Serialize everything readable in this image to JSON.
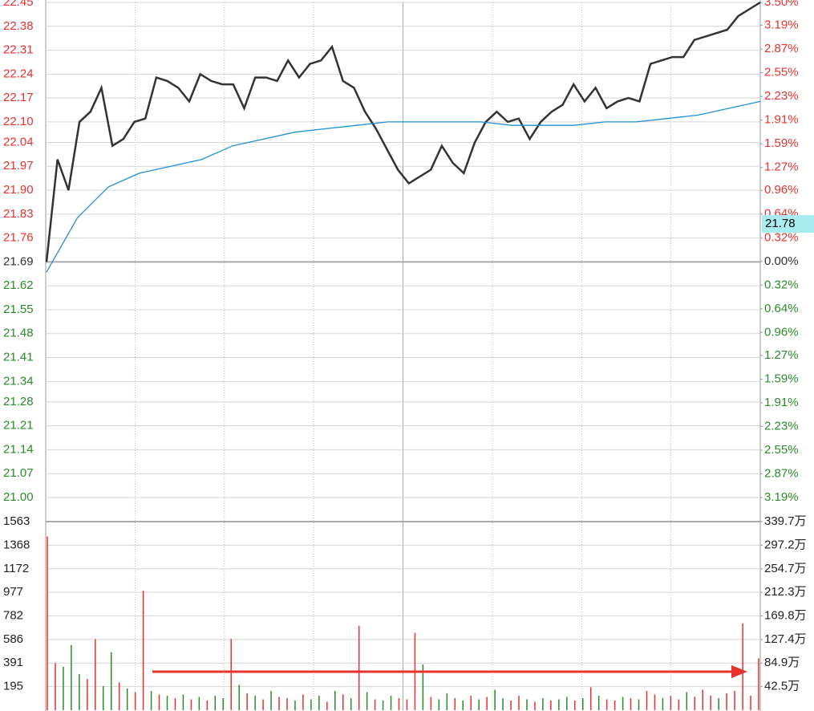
{
  "chart_data": [
    {
      "type": "line",
      "ylim": [
        21.0,
        22.45
      ],
      "yticks": [
        {
          "value": 22.45,
          "label": "22.45"
        },
        22.38,
        22.31,
        22.24,
        22.17,
        {
          "value": 22.1,
          "label": "22.10"
        },
        22.04,
        21.97,
        {
          "value": 21.9,
          "label": "21.90"
        },
        21.83,
        21.76,
        21.69,
        21.62,
        21.55,
        21.48,
        21.41,
        21.34,
        21.28,
        21.21,
        21.14,
        21.07,
        {
          "value": 21.0,
          "label": "21.00"
        }
      ],
      "y2lim": [
        -3.19,
        3.5
      ],
      "y2ticks": [
        {
          "value": 3.5,
          "label": "3.50%"
        },
        {
          "value": 3.19,
          "label": "3.19%"
        },
        {
          "value": 2.87,
          "label": "2.87%"
        },
        {
          "value": 2.55,
          "label": "2.55%"
        },
        {
          "value": 2.23,
          "label": "2.23%"
        },
        {
          "value": 1.91,
          "label": "1.91%"
        },
        {
          "value": 1.59,
          "label": "1.59%"
        },
        {
          "value": 1.27,
          "label": "1.27%"
        },
        {
          "value": 0.96,
          "label": "0.96%"
        },
        {
          "value": 0.64,
          "label": "0.64%"
        },
        {
          "value": 0.32,
          "label": "0.32%"
        },
        {
          "value": 0.0,
          "label": "0.00%"
        },
        {
          "value": -0.32,
          "label": "0.32%"
        },
        {
          "value": -0.64,
          "label": "0.64%"
        },
        {
          "value": -0.96,
          "label": "0.96%"
        },
        {
          "value": -1.27,
          "label": "1.27%"
        },
        {
          "value": -1.59,
          "label": "1.59%"
        },
        {
          "value": -1.91,
          "label": "1.91%"
        },
        {
          "value": -2.23,
          "label": "2.23%"
        },
        {
          "value": -2.55,
          "label": "2.55%"
        },
        {
          "value": -2.87,
          "label": "2.87%"
        },
        {
          "value": -3.19,
          "label": "3.19%"
        }
      ],
      "up_color": "#e8322d",
      "down_color": "#2b8a2b",
      "flat_color": "#333333",
      "series": [
        {
          "color": "#333333",
          "values": [
            21.69,
            21.99,
            21.9,
            22.1,
            22.13,
            22.2,
            22.03,
            22.05,
            22.1,
            22.11,
            22.23,
            22.22,
            22.2,
            22.16,
            22.24,
            22.22,
            22.21,
            22.21,
            22.14,
            22.23,
            22.23,
            22.22,
            22.28,
            22.23,
            22.27,
            22.28,
            22.32,
            22.22,
            22.2,
            22.13,
            22.08,
            22.02,
            21.96,
            21.92,
            21.94,
            21.96,
            22.03,
            21.98,
            21.95,
            22.04,
            22.1,
            22.13,
            22.1,
            22.11,
            22.05,
            22.1,
            22.13,
            22.15,
            22.21,
            22.16,
            22.2,
            22.14,
            22.16,
            22.17,
            22.16,
            22.27,
            22.28,
            22.29,
            22.29,
            22.34,
            22.35,
            22.36,
            22.37,
            22.41,
            22.43,
            22.45
          ]
        },
        {
          "color": "#1e8fd6",
          "values": [
            21.66,
            21.82,
            21.91,
            21.95,
            21.97,
            21.99,
            22.03,
            22.05,
            22.07,
            22.08,
            22.09,
            22.1,
            22.1,
            22.1,
            22.1,
            22.09,
            22.09,
            22.09,
            22.1,
            22.1,
            22.11,
            22.12,
            22.14,
            22.16
          ]
        }
      ],
      "annotation": {
        "value": 21.78,
        "label": "21.78"
      }
    },
    {
      "type": "bar",
      "ylim": [
        0,
        1563
      ],
      "yticks": [
        1563,
        1368,
        1172,
        977,
        782,
        586,
        391,
        195
      ],
      "y2lim": [
        0,
        339.7
      ],
      "y2ticks": [
        {
          "value": 339.7,
          "label": "339.7万"
        },
        {
          "value": 297.2,
          "label": "297.2万"
        },
        {
          "value": 254.7,
          "label": "254.7万"
        },
        {
          "value": 212.3,
          "label": "212.3万"
        },
        {
          "value": 169.8,
          "label": "169.8万"
        },
        {
          "value": 127.4,
          "label": "127.4万"
        },
        {
          "value": 84.9,
          "label": "84.9万"
        },
        {
          "value": 42.5,
          "label": "42.5万"
        }
      ],
      "up_color": "#e8322d",
      "down_color": "#2b8a2b",
      "values": [
        1440,
        390,
        360,
        540,
        300,
        260,
        590,
        200,
        480,
        230,
        180,
        150,
        990,
        160,
        130,
        120,
        100,
        130,
        90,
        110,
        80,
        120,
        100,
        590,
        210,
        140,
        120,
        90,
        160,
        110,
        100,
        80,
        130,
        90,
        120,
        70,
        160,
        130,
        100,
        700,
        150,
        90,
        80,
        120,
        100,
        90,
        640,
        380,
        110,
        90,
        140,
        100,
        80,
        120,
        90,
        110,
        170,
        100,
        80,
        120,
        90,
        70,
        100,
        80,
        90,
        110,
        80,
        100,
        190,
        120,
        90,
        80,
        110,
        100,
        90,
        160,
        130,
        100,
        120,
        90,
        150,
        110,
        170,
        120,
        100,
        140,
        160,
        720,
        120,
        430
      ],
      "rising": [
        1,
        1,
        0,
        0,
        0,
        1,
        1,
        0,
        0,
        1,
        0,
        1,
        1,
        0,
        1,
        0,
        1,
        0,
        1,
        0,
        1,
        0,
        0,
        1,
        0,
        1,
        0,
        1,
        0,
        1,
        1,
        0,
        1,
        0,
        0,
        1,
        0,
        1,
        0,
        1,
        0,
        1,
        0,
        0,
        1,
        1,
        1,
        0,
        1,
        0,
        0,
        1,
        0,
        1,
        0,
        1,
        0,
        0,
        1,
        1,
        0,
        1,
        0,
        1,
        0,
        0,
        1,
        0,
        1,
        0,
        1,
        1,
        0,
        1,
        0,
        1,
        1,
        0,
        1,
        1,
        0,
        1,
        1,
        1,
        0,
        1,
        1,
        1,
        1,
        1
      ]
    }
  ]
}
